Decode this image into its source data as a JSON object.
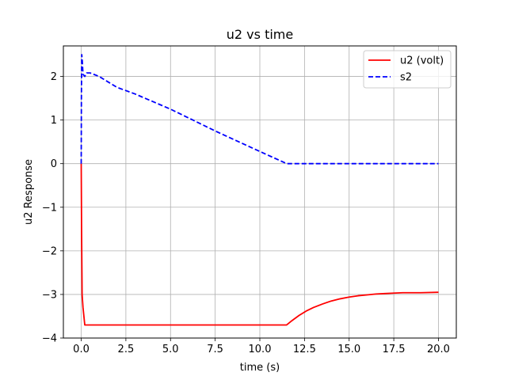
{
  "chart_data": {
    "type": "line",
    "title": "u2 vs time",
    "xlabel": "time (s)",
    "ylabel": "u2 Response",
    "xlim": [
      -0.999,
      20.999
    ],
    "ylim": [
      -4.0,
      2.7
    ],
    "xticks": [
      0.0,
      2.5,
      5.0,
      7.5,
      10.0,
      12.5,
      15.0,
      17.5,
      20.0
    ],
    "xtick_labels": [
      "0.0",
      "2.5",
      "5.0",
      "7.5",
      "10.0",
      "12.5",
      "15.0",
      "17.5",
      "20.0"
    ],
    "yticks": [
      -4,
      -3,
      -2,
      -1,
      0,
      1,
      2
    ],
    "ytick_labels": [
      "−4",
      "−3",
      "−2",
      "−1",
      "0",
      "1",
      "2"
    ],
    "grid": true,
    "legend_position": "top-right",
    "series": [
      {
        "name": "u2 (volt)",
        "color": "#ff0000",
        "style": "solid",
        "x": [
          0.0,
          0.02,
          0.05,
          0.1,
          0.2,
          1.0,
          3.0,
          5.0,
          7.5,
          10.0,
          11.5,
          11.8,
          12.2,
          12.6,
          13.0,
          13.5,
          14.0,
          14.5,
          15.0,
          15.5,
          16.0,
          16.5,
          17.0,
          17.5,
          18.0,
          19.0,
          20.0
        ],
        "y": [
          0.0,
          -1.5,
          -3.0,
          -3.3,
          -3.7,
          -3.7,
          -3.7,
          -3.7,
          -3.7,
          -3.7,
          -3.7,
          -3.6,
          -3.48,
          -3.38,
          -3.3,
          -3.22,
          -3.15,
          -3.1,
          -3.06,
          -3.03,
          -3.01,
          -2.99,
          -2.98,
          -2.97,
          -2.96,
          -2.96,
          -2.95
        ]
      },
      {
        "name": "s2",
        "color": "#0000ff",
        "style": "dashed",
        "x": [
          0.0,
          0.01,
          0.03,
          0.06,
          0.1,
          0.2,
          0.3,
          0.5,
          1.0,
          2.0,
          3.0,
          5.0,
          7.5,
          10.0,
          11.5,
          12.0,
          15.0,
          17.5,
          20.0
        ],
        "y": [
          0.0,
          1.5,
          2.5,
          2.35,
          2.05,
          2.0,
          2.08,
          2.08,
          2.0,
          1.75,
          1.6,
          1.25,
          0.75,
          0.28,
          0.0,
          0.0,
          0.0,
          0.0,
          0.0
        ]
      }
    ]
  }
}
